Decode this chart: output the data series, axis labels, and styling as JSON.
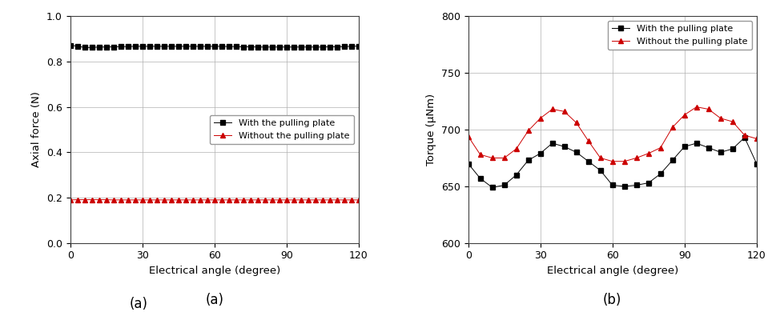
{
  "left": {
    "xlabel": "Electrical angle (degree)",
    "ylabel": "Axial force (N)",
    "xlim": [
      0,
      120
    ],
    "ylim": [
      0.0,
      1.0
    ],
    "xticks": [
      0,
      30,
      60,
      90,
      120
    ],
    "yticks": [
      0.0,
      0.2,
      0.4,
      0.6,
      0.8,
      1.0
    ],
    "label_a": "(a)",
    "legend1": "With the pulling plate",
    "legend2": "Without the pulling plate",
    "with_x": [
      0,
      3,
      6,
      9,
      12,
      15,
      18,
      21,
      24,
      27,
      30,
      33,
      36,
      39,
      42,
      45,
      48,
      51,
      54,
      57,
      60,
      63,
      66,
      69,
      72,
      75,
      78,
      81,
      84,
      87,
      90,
      93,
      96,
      99,
      102,
      105,
      108,
      111,
      114,
      117,
      120
    ],
    "with_y": [
      0.872,
      0.868,
      0.862,
      0.862,
      0.864,
      0.864,
      0.865,
      0.866,
      0.866,
      0.867,
      0.867,
      0.867,
      0.867,
      0.867,
      0.867,
      0.867,
      0.867,
      0.867,
      0.867,
      0.867,
      0.867,
      0.867,
      0.866,
      0.866,
      0.865,
      0.865,
      0.864,
      0.864,
      0.864,
      0.864,
      0.864,
      0.864,
      0.864,
      0.864,
      0.864,
      0.864,
      0.865,
      0.865,
      0.866,
      0.867,
      0.868
    ],
    "without_x": [
      0,
      3,
      6,
      9,
      12,
      15,
      18,
      21,
      24,
      27,
      30,
      33,
      36,
      39,
      42,
      45,
      48,
      51,
      54,
      57,
      60,
      63,
      66,
      69,
      72,
      75,
      78,
      81,
      84,
      87,
      90,
      93,
      96,
      99,
      102,
      105,
      108,
      111,
      114,
      117,
      120
    ],
    "without_y": [
      0.19,
      0.191,
      0.191,
      0.191,
      0.191,
      0.191,
      0.19,
      0.19,
      0.19,
      0.19,
      0.19,
      0.19,
      0.19,
      0.19,
      0.19,
      0.19,
      0.19,
      0.19,
      0.19,
      0.19,
      0.19,
      0.19,
      0.19,
      0.19,
      0.19,
      0.19,
      0.19,
      0.19,
      0.19,
      0.19,
      0.19,
      0.19,
      0.19,
      0.19,
      0.19,
      0.19,
      0.19,
      0.19,
      0.19,
      0.19,
      0.19
    ],
    "color_with": "#000000",
    "color_without": "#cc0000"
  },
  "right": {
    "xlabel": "Electrical angle (degree)",
    "ylabel": "Torque (μNm)",
    "xlim": [
      0,
      120
    ],
    "ylim": [
      600,
      800
    ],
    "xticks": [
      0,
      30,
      60,
      90,
      120
    ],
    "yticks": [
      600,
      650,
      700,
      750,
      800
    ],
    "label_b": "(b)",
    "legend1": "With the pulling plate",
    "legend2": "Without the pulling plate",
    "with_x": [
      0,
      5,
      10,
      15,
      20,
      25,
      30,
      35,
      40,
      45,
      50,
      55,
      60,
      65,
      70,
      75,
      80,
      85,
      90,
      95,
      100,
      105,
      110,
      115,
      120
    ],
    "with_y": [
      670,
      657,
      649,
      651,
      660,
      673,
      679,
      688,
      685,
      680,
      672,
      664,
      651,
      650,
      651,
      653,
      661,
      673,
      685,
      688,
      684,
      680,
      683,
      693,
      670
    ],
    "without_x": [
      0,
      5,
      10,
      15,
      20,
      25,
      30,
      35,
      40,
      45,
      50,
      55,
      60,
      65,
      70,
      75,
      80,
      85,
      90,
      95,
      100,
      105,
      110,
      115,
      120
    ],
    "without_y": [
      694,
      678,
      675,
      675,
      683,
      699,
      710,
      718,
      716,
      706,
      690,
      675,
      672,
      672,
      675,
      679,
      684,
      702,
      713,
      720,
      718,
      710,
      707,
      695,
      692
    ],
    "color_with": "#000000",
    "color_without": "#cc0000"
  }
}
